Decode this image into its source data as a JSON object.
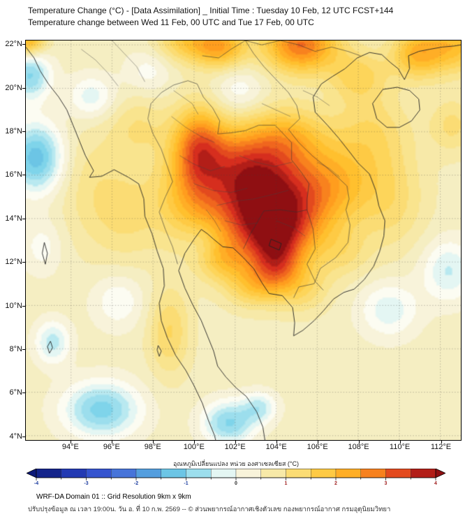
{
  "header": {
    "title_line1": "Temperature Change (°C) - [Data Assimilation] _ Initial Time : Tuesday 10 Feb, 12 UTC FCST+144",
    "title_line2": "Temperature change between Wed 11 Feb, 00 UTC and Tue 17 Feb, 00 UTC"
  },
  "axes": {
    "y_tick_labels": [
      "22°N",
      "20°N",
      "18°N",
      "16°N",
      "14°N",
      "12°N",
      "10°N",
      "8°N",
      "6°N",
      "4°N"
    ],
    "y_tick_lats": [
      22,
      20,
      18,
      16,
      14,
      12,
      10,
      8,
      6,
      4
    ],
    "x_tick_labels": [
      "94°E",
      "96°E",
      "98°E",
      "100°E",
      "102°E",
      "104°E",
      "106°E",
      "108°E",
      "110°E",
      "112°E"
    ],
    "x_tick_lons": [
      94,
      96,
      98,
      100,
      102,
      104,
      106,
      108,
      110,
      112
    ]
  },
  "colorbar": {
    "label": "อุณหภูมิเปลี่ยนแปลง หน่วย องศาเซลเซียส (°C)",
    "tick_labels": [
      "-4",
      "-3",
      "-2",
      "-1",
      "0",
      "1",
      "2",
      "3",
      "4"
    ],
    "tick_values": [
      -4,
      -3,
      -2,
      -1,
      0,
      1,
      2,
      3,
      4
    ],
    "negative_color": "#1a3a9e",
    "zero_color": "#222222",
    "positive_color": "#a02020"
  },
  "footer": {
    "line1": "WRF-DA Domain 01 :: Grid Resolution 9km x 9km",
    "line2": "ปรับปรุงข้อมูล ณ เวลา 19:00น. วัน อ. ที่ 10 ก.พ. 2569 -- © ส่วนพยากรณ์อากาศเชิงตัวเลข กองพยากรณ์อากาศ กรมอุตุนิยมวิทยา"
  },
  "chart_data": {
    "type": "heatmap",
    "title": "Temperature change (°C) between Wed 11 Feb 00 UTC and Tue 17 Feb 00 UTC, WRF-DA Domain 01",
    "units": "°C",
    "lon_range": [
      91.8,
      113.0
    ],
    "lat_range": [
      3.8,
      22.2
    ],
    "x_ticks_lon": [
      94,
      96,
      98,
      100,
      102,
      104,
      106,
      108,
      110,
      112
    ],
    "y_ticks_lat": [
      4,
      6,
      8,
      10,
      12,
      14,
      16,
      18,
      20,
      22
    ],
    "value_range": [
      -4,
      4
    ],
    "contour_step": 0.25,
    "colorbar_segment_step": 0.5,
    "grid": "dotted",
    "legend_position": "bottom",
    "colormap_stops": [
      [
        -4.0,
        "#0d1a78"
      ],
      [
        -3.5,
        "#1c2f9e"
      ],
      [
        -3.0,
        "#2b46c8"
      ],
      [
        -2.5,
        "#3f63d6"
      ],
      [
        -2.0,
        "#4f86dc"
      ],
      [
        -1.5,
        "#59b6e0"
      ],
      [
        -1.0,
        "#7fd4ea"
      ],
      [
        -0.5,
        "#b9e9f0"
      ],
      [
        -0.25,
        "#e4f6f3"
      ],
      [
        0.0,
        "#fcfcf2"
      ],
      [
        0.25,
        "#f8f3da"
      ],
      [
        0.5,
        "#f5eec2"
      ],
      [
        1.0,
        "#f9e48e"
      ],
      [
        1.5,
        "#fdd55a"
      ],
      [
        2.0,
        "#ffc02e"
      ],
      [
        2.5,
        "#ff9d1e"
      ],
      [
        3.0,
        "#f0661e"
      ],
      [
        3.5,
        "#d62e1e"
      ],
      [
        4.0,
        "#8f0f12"
      ]
    ],
    "field": {
      "base": 0.5,
      "gaussians": [
        [
          103.6,
          14.6,
          2.0,
          1.7,
          3.2
        ],
        [
          103.9,
          13.3,
          1.3,
          1.1,
          1.3
        ],
        [
          102.4,
          16.6,
          1.5,
          1.3,
          1.5
        ],
        [
          100.2,
          17.4,
          0.9,
          1.3,
          2.0
        ],
        [
          99.8,
          15.0,
          1.2,
          1.5,
          1.1
        ],
        [
          106.8,
          15.6,
          1.4,
          1.3,
          1.1
        ],
        [
          104.6,
          17.8,
          1.3,
          1.0,
          1.1
        ],
        [
          105.2,
          22.0,
          1.3,
          0.9,
          2.4
        ],
        [
          101.3,
          21.9,
          0.9,
          0.7,
          1.7
        ],
        [
          99.6,
          22.2,
          1.0,
          0.7,
          1.2
        ],
        [
          110.9,
          21.6,
          0.9,
          0.8,
          1.6
        ],
        [
          112.8,
          22.0,
          1.0,
          0.9,
          1.4
        ],
        [
          91.9,
          22.2,
          0.6,
          0.5,
          1.8
        ],
        [
          108.0,
          20.6,
          1.0,
          0.8,
          0.9
        ],
        [
          108.6,
          18.0,
          1.4,
          1.4,
          0.8
        ],
        [
          109.6,
          14.8,
          1.2,
          1.6,
          0.7
        ],
        [
          112.6,
          18.3,
          0.8,
          0.9,
          0.7
        ],
        [
          96.8,
          14.2,
          1.2,
          1.6,
          0.6
        ],
        [
          97.3,
          18.2,
          1.0,
          1.0,
          0.6
        ],
        [
          95.0,
          15.5,
          1.2,
          2.0,
          0.45
        ],
        [
          101.3,
          12.1,
          0.9,
          0.7,
          0.9
        ],
        [
          102.8,
          10.9,
          0.9,
          0.7,
          0.9
        ],
        [
          104.0,
          11.8,
          0.8,
          0.9,
          1.5
        ],
        [
          105.3,
          10.8,
          0.9,
          0.8,
          0.7
        ],
        [
          98.8,
          8.8,
          0.7,
          1.4,
          0.9
        ],
        [
          107.3,
          12.4,
          0.9,
          0.8,
          0.5
        ],
        [
          92.0,
          20.6,
          0.7,
          0.8,
          -1.4
        ],
        [
          92.3,
          16.8,
          0.9,
          1.1,
          -1.8
        ],
        [
          95.0,
          19.6,
          0.8,
          0.7,
          -0.8
        ],
        [
          97.8,
          20.8,
          0.8,
          0.7,
          -0.5
        ],
        [
          102.2,
          19.9,
          0.9,
          0.8,
          -0.6
        ],
        [
          92.6,
          12.7,
          0.7,
          0.9,
          -0.5
        ],
        [
          93.1,
          8.3,
          0.6,
          0.7,
          -1.0
        ],
        [
          96.3,
          10.2,
          0.9,
          0.9,
          -0.6
        ],
        [
          95.5,
          5.2,
          1.3,
          0.9,
          -1.5
        ],
        [
          101.7,
          4.6,
          0.9,
          0.7,
          -1.4
        ],
        [
          103.2,
          5.3,
          0.6,
          0.5,
          -0.9
        ],
        [
          109.5,
          9.8,
          1.0,
          0.9,
          -0.8
        ],
        [
          112.4,
          11.6,
          0.9,
          1.0,
          -0.9
        ],
        [
          100.4,
          12.8,
          0.7,
          0.7,
          -0.4
        ]
      ]
    }
  }
}
